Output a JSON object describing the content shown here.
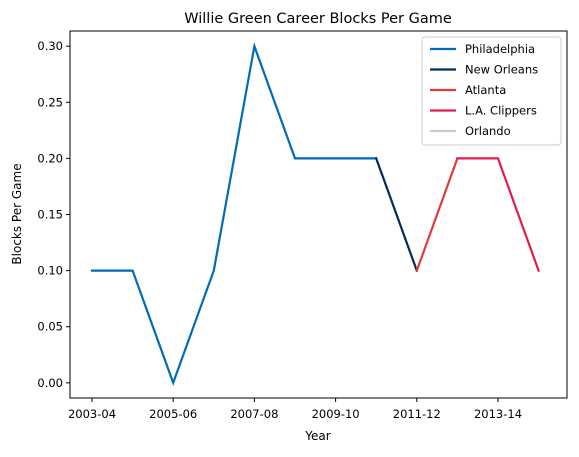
{
  "chart_data": {
    "type": "line",
    "title": "Willie Green Career Blocks Per Game",
    "xlabel": "Year",
    "ylabel": "Blocks Per Game",
    "x_categories": [
      "2003-04",
      "2004-05",
      "2005-06",
      "2006-07",
      "2007-08",
      "2008-09",
      "2009-10",
      "2010-11",
      "2011-12",
      "2012-13",
      "2013-14",
      "2014-15"
    ],
    "x_tick_labels": [
      "2003-04",
      "2005-06",
      "2007-08",
      "2009-10",
      "2011-12",
      "2013-14"
    ],
    "y_ticks": [
      "0.00",
      "0.05",
      "0.10",
      "0.15",
      "0.20",
      "0.25",
      "0.30"
    ],
    "ylim": [
      -0.0135,
      0.3135
    ],
    "grid": false,
    "legend_position": "top-right",
    "series": [
      {
        "name": "Philadelphia",
        "color": "#006BB6",
        "x": [
          "2003-04",
          "2004-05",
          "2005-06",
          "2006-07",
          "2007-08",
          "2008-09",
          "2009-10",
          "2010-11"
        ],
        "values": [
          0.1,
          0.1,
          0.0,
          0.1,
          0.3,
          0.2,
          0.2,
          0.2
        ]
      },
      {
        "name": "New Orleans",
        "color": "#002B5C",
        "x": [
          "2010-11",
          "2011-12"
        ],
        "values": [
          0.2,
          0.1
        ]
      },
      {
        "name": "Atlanta",
        "color": "#E03A3E",
        "x": [
          "2011-12",
          "2012-13"
        ],
        "values": [
          0.1,
          0.2
        ]
      },
      {
        "name": "L.A. Clippers",
        "color": "#E31B4C",
        "x": [
          "2012-13",
          "2013-14",
          "2014-15"
        ],
        "values": [
          0.2,
          0.2,
          0.1
        ]
      },
      {
        "name": "Orlando",
        "color": "#C4CED4",
        "x": [],
        "values": []
      }
    ]
  }
}
